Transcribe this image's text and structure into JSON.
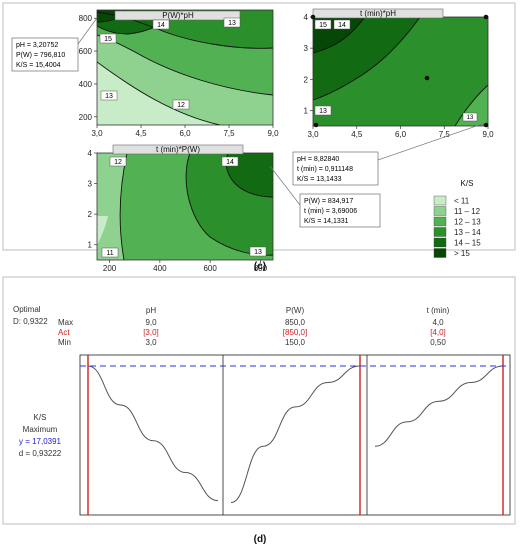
{
  "panel_c": {
    "label": "(c)",
    "legend_title": "K/S",
    "legend_items": [
      {
        "text": "<   11",
        "color": "#c8ecc8"
      },
      {
        "text": "11 –  12",
        "color": "#8fd28f"
      },
      {
        "text": "12 –  13",
        "color": "#52b152"
      },
      {
        "text": "13 –  14",
        "color": "#2b8f2b"
      },
      {
        "text": "14 –  15",
        "color": "#126a12"
      },
      {
        "text": ">   15",
        "color": "#064706"
      }
    ],
    "callouts": {
      "a": [
        "pH = 3,20752",
        "P(W) = 796,810",
        "K/S = 15,4004"
      ],
      "b": [
        "pH = 8,82840",
        "t (min) = 0,911148",
        "K/S = 13,1433"
      ],
      "c": [
        "P(W) = 834,917",
        "t (min) = 3,69006",
        "K/S = 14,1331"
      ]
    }
  },
  "panel_d": {
    "label": "(d)",
    "optimal_label": "Optimal",
    "d_label": "D: 0,9322",
    "row_labels": [
      "Max",
      "Act",
      "Min"
    ],
    "response_lines": [
      "K/S",
      "Maximum",
      "y = 17,0391",
      "d = 0,93222"
    ]
  },
  "chart_data": [
    {
      "type": "heatmap",
      "title": "P(W)*pH",
      "x_axis_var": "pH",
      "y_axis_var": "P(W)",
      "xticks": [
        "3,0",
        "4,5",
        "6,0",
        "7,5",
        "9,0"
      ],
      "yticks": [
        "200",
        "400",
        "600",
        "800"
      ],
      "xlim": [
        3.0,
        9.0
      ],
      "ylim": [
        150,
        850
      ],
      "contour_labels": [
        "15",
        "14",
        "13",
        "13",
        "12"
      ],
      "marked_point": {
        "x": 3.20752,
        "y": 796.81,
        "z": 15.4004
      }
    },
    {
      "type": "heatmap",
      "title": "t (min)*pH",
      "x_axis_var": "pH",
      "y_axis_var": "t (min)",
      "xticks": [
        "3,0",
        "4,5",
        "6,0",
        "7,5",
        "9,0"
      ],
      "yticks": [
        "1",
        "2",
        "3",
        "4"
      ],
      "xlim": [
        3.0,
        9.0
      ],
      "ylim": [
        0.5,
        4.0
      ],
      "contour_labels": [
        "15",
        "14",
        "13",
        "13"
      ],
      "marked_point": {
        "x": 8.8284,
        "y": 0.911148,
        "z": 13.1433
      }
    },
    {
      "type": "heatmap",
      "title": "t (min)*P(W)",
      "x_axis_var": "P(W)",
      "y_axis_var": "t (min)",
      "xticks": [
        "200",
        "400",
        "600",
        "800"
      ],
      "yticks": [
        "1",
        "2",
        "3",
        "4"
      ],
      "xlim": [
        150,
        850
      ],
      "ylim": [
        0.5,
        4.0
      ],
      "contour_labels": [
        "12",
        "14",
        "11",
        "13"
      ],
      "marked_point": {
        "x": 834.917,
        "y": 3.69006,
        "z": 14.1331
      }
    },
    {
      "type": "line",
      "title": "pH",
      "max": "9,0",
      "act": "[3,0]",
      "min": "3,0",
      "x": [
        3.0,
        4.5,
        6.0,
        7.5,
        9.0
      ],
      "values": [
        17.04,
        16.0,
        15.05,
        14.2,
        13.45
      ]
    },
    {
      "type": "line",
      "title": "P(W)",
      "max": "850,0",
      "act": "[850,0]",
      "min": "150,0",
      "x": [
        150,
        325,
        500,
        675,
        850
      ],
      "values": [
        13.4,
        14.9,
        15.95,
        16.6,
        17.04
      ]
    },
    {
      "type": "line",
      "title": "t (min)",
      "max": "4,0",
      "act": "[4,0]",
      "min": "0,50",
      "x": [
        0.5,
        1.375,
        2.25,
        3.125,
        4.0
      ],
      "values": [
        14.9,
        15.55,
        16.1,
        16.6,
        17.04
      ]
    }
  ]
}
